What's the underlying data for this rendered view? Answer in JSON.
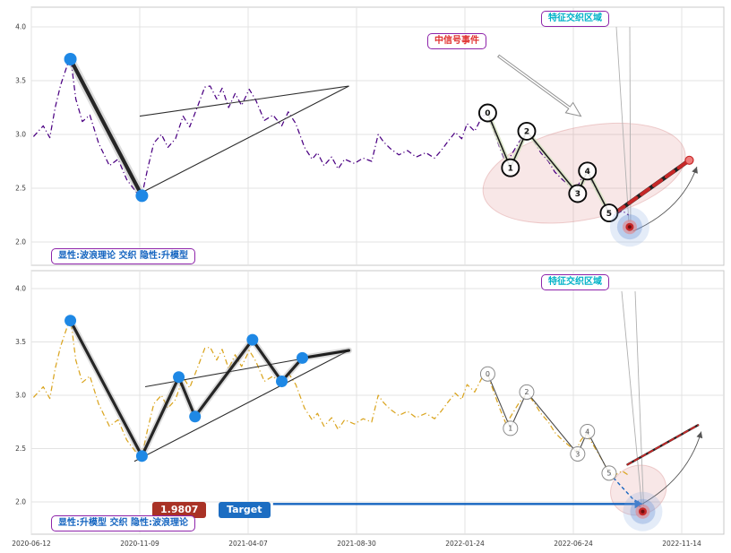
{
  "chart_data": {
    "type": "line",
    "x_unit": "tick index (1 unit = interval between date ticks)",
    "x_tick_labels": [
      "2020-06-12",
      "2020-11-09",
      "2021-04-07",
      "2021-08-30",
      "2022-01-24",
      "2022-06-24",
      "2022-11-14"
    ],
    "y_tick_values": [
      4.0,
      3.5,
      3.0,
      2.5,
      2.0
    ],
    "ylim": [
      1.7,
      4.2
    ],
    "grid": true,
    "price_series": [
      [
        0.02,
        2.98
      ],
      [
        0.11,
        3.08
      ],
      [
        0.17,
        2.97
      ],
      [
        0.22,
        3.25
      ],
      [
        0.27,
        3.46
      ],
      [
        0.36,
        3.73
      ],
      [
        0.41,
        3.33
      ],
      [
        0.47,
        3.12
      ],
      [
        0.54,
        3.18
      ],
      [
        0.62,
        2.92
      ],
      [
        0.72,
        2.71
      ],
      [
        0.8,
        2.77
      ],
      [
        0.88,
        2.58
      ],
      [
        0.97,
        2.46
      ],
      [
        1.02,
        2.43
      ],
      [
        1.07,
        2.67
      ],
      [
        1.13,
        2.92
      ],
      [
        1.2,
        3.0
      ],
      [
        1.26,
        2.88
      ],
      [
        1.33,
        2.96
      ],
      [
        1.4,
        3.17
      ],
      [
        1.46,
        3.07
      ],
      [
        1.53,
        3.25
      ],
      [
        1.6,
        3.44
      ],
      [
        1.65,
        3.45
      ],
      [
        1.71,
        3.33
      ],
      [
        1.76,
        3.43
      ],
      [
        1.82,
        3.25
      ],
      [
        1.88,
        3.38
      ],
      [
        1.94,
        3.27
      ],
      [
        2.01,
        3.42
      ],
      [
        2.07,
        3.32
      ],
      [
        2.15,
        3.13
      ],
      [
        2.23,
        3.18
      ],
      [
        2.31,
        3.08
      ],
      [
        2.37,
        3.21
      ],
      [
        2.44,
        3.1
      ],
      [
        2.52,
        2.88
      ],
      [
        2.59,
        2.77
      ],
      [
        2.64,
        2.83
      ],
      [
        2.7,
        2.71
      ],
      [
        2.77,
        2.79
      ],
      [
        2.83,
        2.68
      ],
      [
        2.89,
        2.77
      ],
      [
        2.98,
        2.73
      ],
      [
        3.06,
        2.78
      ],
      [
        3.14,
        2.75
      ],
      [
        3.2,
        3.0
      ],
      [
        3.25,
        2.93
      ],
      [
        3.31,
        2.87
      ],
      [
        3.39,
        2.81
      ],
      [
        3.47,
        2.85
      ],
      [
        3.55,
        2.79
      ],
      [
        3.64,
        2.83
      ],
      [
        3.72,
        2.78
      ],
      [
        3.78,
        2.85
      ],
      [
        3.84,
        2.93
      ],
      [
        3.91,
        3.02
      ],
      [
        3.97,
        2.96
      ],
      [
        4.02,
        3.1
      ],
      [
        4.09,
        3.03
      ],
      [
        4.16,
        3.17
      ],
      [
        4.21,
        3.19
      ],
      [
        4.27,
        3.02
      ],
      [
        4.32,
        2.88
      ],
      [
        4.38,
        2.73
      ],
      [
        4.44,
        2.83
      ],
      [
        4.5,
        2.93
      ],
      [
        4.57,
        3.02
      ],
      [
        4.64,
        2.93
      ],
      [
        4.7,
        2.83
      ],
      [
        4.77,
        2.75
      ],
      [
        4.83,
        2.65
      ],
      [
        4.9,
        2.58
      ],
      [
        4.97,
        2.52
      ],
      [
        5.02,
        2.47
      ],
      [
        5.07,
        2.58
      ],
      [
        5.12,
        2.64
      ],
      [
        5.18,
        2.54
      ],
      [
        5.25,
        2.42
      ],
      [
        5.31,
        2.31
      ],
      [
        5.38,
        2.25
      ],
      [
        5.45,
        2.29
      ],
      [
        5.51,
        2.25
      ]
    ],
    "panels": [
      {
        "series_color": "#4B0082",
        "corner_label": "显性:波浪理论 交织 隐性:升模型",
        "region_label": "特征交织区域",
        "signal_label": "中信号事件",
        "zigzag": [
          [
            0.36,
            3.7
          ],
          [
            1.02,
            2.43
          ]
        ],
        "pivots": [
          [
            0.36,
            3.7
          ],
          [
            1.02,
            2.43
          ]
        ],
        "trendlines": [
          [
            [
              1.0,
              3.17
            ],
            [
              2.93,
              3.45
            ]
          ],
          [
            [
              1.0,
              2.45
            ],
            [
              2.93,
              3.45
            ]
          ]
        ],
        "wave_points": [
          {
            "label": "0",
            "t": 4.21,
            "v": 3.2
          },
          {
            "label": "1",
            "t": 4.42,
            "v": 2.69
          },
          {
            "label": "2",
            "t": 4.57,
            "v": 3.03
          },
          {
            "label": "3",
            "t": 5.04,
            "v": 2.45
          },
          {
            "label": "4",
            "t": 5.13,
            "v": 2.66
          },
          {
            "label": "5",
            "t": 5.33,
            "v": 2.27
          }
        ],
        "ellipse": {
          "t": 5.1,
          "v": 2.64,
          "rt": 0.95,
          "rv": 0.43,
          "rot": -12
        },
        "projection": {
          "from": [
            5.4,
            2.28
          ],
          "to": [
            6.07,
            2.76
          ],
          "width": 4
        },
        "arc_arrow": {
          "from": [
            5.55,
            2.1
          ],
          "ctrl": [
            6.0,
            2.3
          ],
          "to": [
            6.14,
            2.7
          ]
        },
        "open_arrow": {
          "from": [
            4.31,
            3.73
          ],
          "to": [
            5.07,
            3.17
          ]
        },
        "target_marker": {
          "t": 5.52,
          "v": 2.14
        }
      },
      {
        "series_color": "#DAA520",
        "corner_label": "显性:升模型 交织 隐性:波浪理论",
        "region_label": "特征交织区域",
        "zigzag": [
          [
            0.36,
            3.7
          ],
          [
            1.02,
            2.43
          ],
          [
            1.36,
            3.17
          ],
          [
            1.51,
            2.8
          ],
          [
            2.04,
            3.52
          ],
          [
            2.31,
            3.13
          ],
          [
            2.5,
            3.35
          ],
          [
            2.93,
            3.42
          ]
        ],
        "pivots": [
          [
            0.36,
            3.7
          ],
          [
            1.02,
            2.43
          ],
          [
            1.36,
            3.17
          ],
          [
            1.51,
            2.8
          ],
          [
            2.04,
            3.52
          ],
          [
            2.31,
            3.13
          ],
          [
            2.5,
            3.35
          ]
        ],
        "trendlines": [
          [
            [
              0.95,
              2.38
            ],
            [
              2.93,
              3.42
            ]
          ],
          [
            [
              1.05,
              3.08
            ],
            [
              2.93,
              3.42
            ]
          ]
        ],
        "wave_points": [
          {
            "label": "0",
            "t": 4.21,
            "v": 3.2
          },
          {
            "label": "1",
            "t": 4.42,
            "v": 2.69
          },
          {
            "label": "2",
            "t": 4.57,
            "v": 3.03
          },
          {
            "label": "3",
            "t": 5.04,
            "v": 2.45
          },
          {
            "label": "4",
            "t": 5.13,
            "v": 2.66
          },
          {
            "label": "5",
            "t": 5.33,
            "v": 2.27
          }
        ],
        "ellipse": {
          "t": 5.6,
          "v": 2.11,
          "rt": 0.26,
          "rv": 0.23,
          "rot": -20
        },
        "projection": {
          "from": [
            5.5,
            2.35
          ],
          "to": [
            6.15,
            2.72
          ],
          "width": 1.8
        },
        "arc_arrow": {
          "from": [
            5.58,
            1.95
          ],
          "ctrl": [
            6.05,
            2.2
          ],
          "to": [
            6.18,
            2.66
          ]
        },
        "target_connector": {
          "from": [
            5.33,
            2.27
          ],
          "to": [
            5.62,
            1.95
          ]
        },
        "target_line": {
          "v": 1.9807,
          "from_t": 2.23,
          "to_t": 5.6
        },
        "price_label": "1.9807",
        "target_label": "Target",
        "target_marker": {
          "t": 5.64,
          "v": 1.91
        }
      }
    ]
  }
}
